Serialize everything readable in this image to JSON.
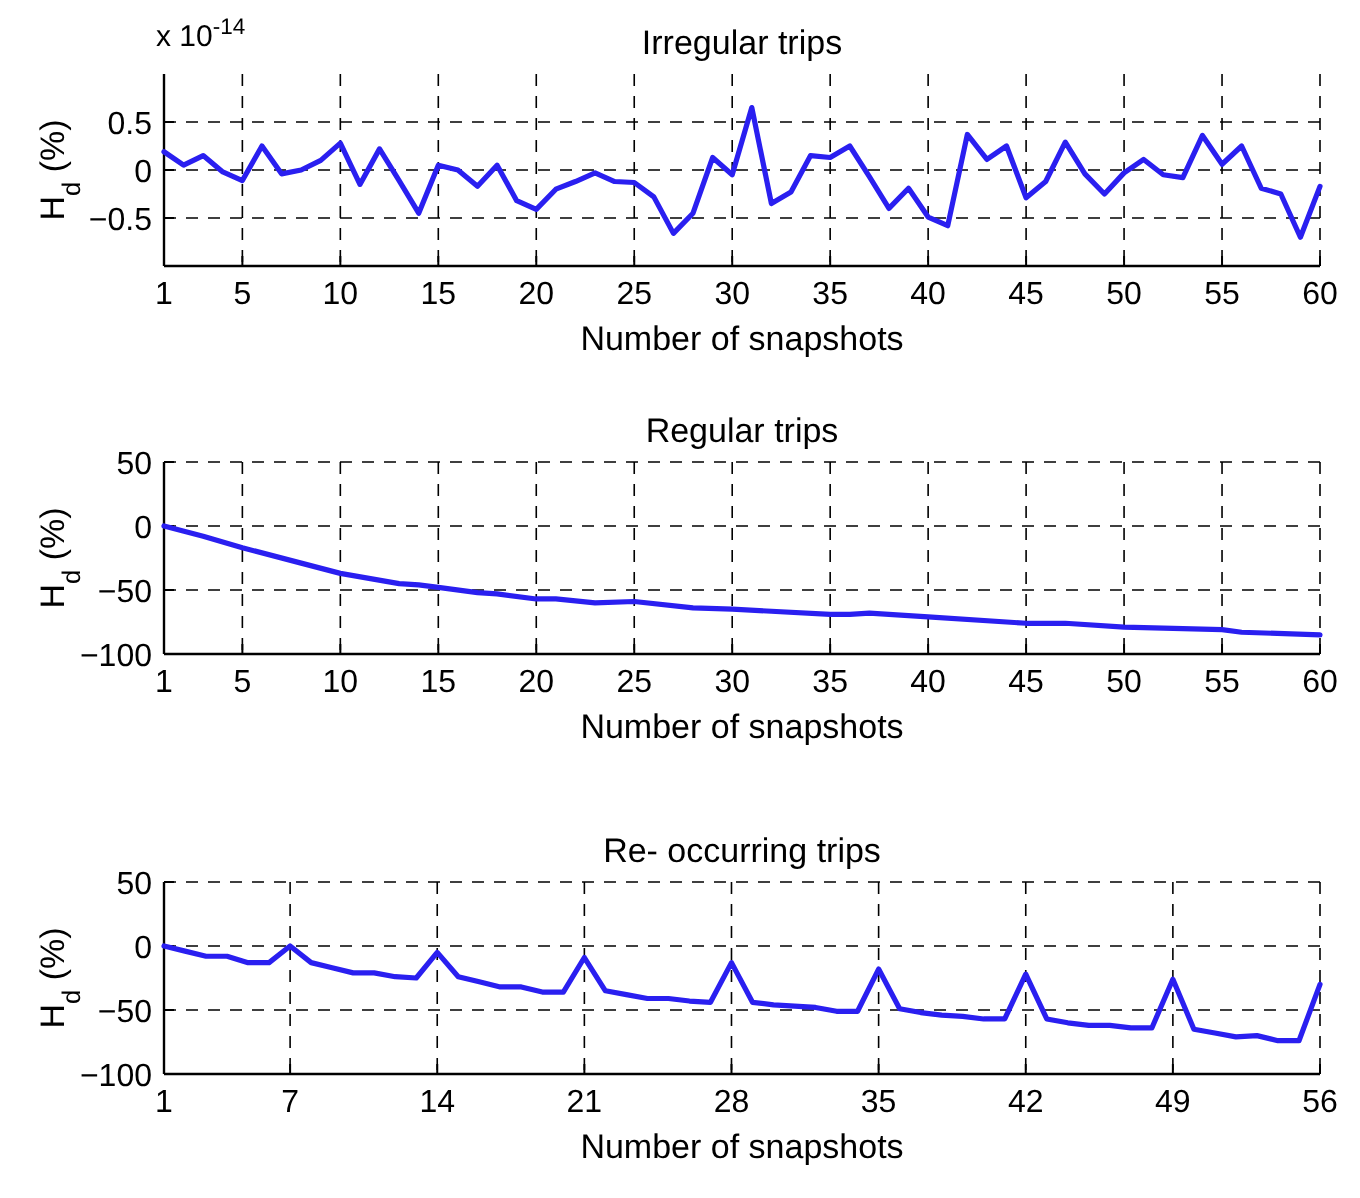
{
  "chart_data": [
    {
      "type": "line",
      "title": "Irregular trips",
      "xlabel": "Number of snapshots",
      "ylabel": "H$_{d}$ (%)",
      "annotations": [
        "x 10$^{-14}$"
      ],
      "grid": true,
      "marker": "none",
      "line_style": "solid",
      "xlim": [
        1,
        60
      ],
      "xticks": [
        1,
        5,
        10,
        15,
        20,
        25,
        30,
        35,
        40,
        45,
        50,
        55,
        60
      ],
      "ylim": [
        -1,
        1
      ],
      "yticks": [
        {
          "value": -0.5,
          "label": "−0.5"
        },
        0,
        0.5
      ],
      "x": [
        1,
        2,
        3,
        4,
        5,
        6,
        7,
        8,
        9,
        10,
        11,
        12,
        13,
        14,
        15,
        16,
        17,
        18,
        19,
        20,
        21,
        22,
        23,
        24,
        25,
        26,
        27,
        28,
        29,
        30,
        31,
        32,
        33,
        34,
        35,
        36,
        37,
        38,
        39,
        40,
        41,
        42,
        43,
        44,
        45,
        46,
        47,
        48,
        49,
        50,
        51,
        52,
        53,
        54,
        55,
        56,
        57,
        58,
        59,
        60
      ],
      "series": [
        {
          "color": "#2a1ff0",
          "values": [
            0.19,
            0.05,
            0.15,
            -0.02,
            -0.11,
            0.25,
            -0.04,
            0,
            0.1,
            0.28,
            -0.15,
            0.22,
            -0.11,
            -0.45,
            0.05,
            0,
            -0.17,
            0.05,
            -0.32,
            -0.41,
            -0.2,
            -0.12,
            -0.03,
            -0.12,
            -0.13,
            -0.28,
            -0.66,
            -0.45,
            0.13,
            -0.05,
            0.65,
            -0.35,
            -0.23,
            0.15,
            0.13,
            0.25,
            -0.07,
            -0.4,
            -0.19,
            -0.49,
            -0.58,
            0.37,
            0.11,
            0.25,
            -0.29,
            -0.12,
            0.29,
            -0.04,
            -0.25,
            -0.03,
            0.11,
            -0.05,
            -0.08,
            0.36,
            0.06,
            0.25,
            -0.19,
            -0.25,
            -0.7,
            -0.17
          ]
        }
      ]
    },
    {
      "type": "line",
      "title": "Regular trips",
      "xlabel": "Number of snapshots",
      "ylabel": "H$_{d}$ (%)",
      "grid": true,
      "marker": "none",
      "line_style": "solid",
      "xlim": [
        1,
        60
      ],
      "xticks": [
        1,
        5,
        10,
        15,
        20,
        25,
        30,
        35,
        40,
        45,
        50,
        55,
        60
      ],
      "ylim": [
        -100,
        50
      ],
      "yticks": [
        {
          "value": -100,
          "label": "−100"
        },
        {
          "value": -50,
          "label": "−50"
        },
        0,
        50
      ],
      "x": [
        1,
        3,
        5,
        8,
        10,
        13,
        14,
        15,
        17,
        18,
        20,
        21,
        23,
        25,
        28,
        30,
        35,
        36,
        37,
        40,
        45,
        47,
        50,
        55,
        56,
        60
      ],
      "series": [
        {
          "color": "#2a1ff0",
          "values": [
            0,
            -8,
            -17,
            -29,
            -37,
            -45,
            -46,
            -48,
            -52,
            -53,
            -57,
            -57,
            -60,
            -59,
            -64,
            -65,
            -69,
            -69,
            -68,
            -71,
            -76,
            -76,
            -79,
            -81,
            -83,
            -85
          ]
        }
      ]
    },
    {
      "type": "line",
      "title": "Re- occurring trips",
      "xlabel": "Number of snapshots",
      "ylabel": "H$_{d}$ (%)",
      "grid": true,
      "marker": "none",
      "line_style": "solid",
      "xlim": [
        1,
        56
      ],
      "xticks": [
        1,
        7,
        14,
        21,
        28,
        35,
        42,
        49,
        56
      ],
      "ylim": [
        -100,
        50
      ],
      "yticks": [
        {
          "value": -100,
          "label": "−100"
        },
        {
          "value": -50,
          "label": "−50"
        },
        0,
        50
      ],
      "x": [
        1,
        2,
        3,
        4,
        5,
        6,
        7,
        8,
        9,
        10,
        11,
        12,
        13,
        14,
        15,
        16,
        17,
        18,
        19,
        20,
        21,
        22,
        23,
        24,
        25,
        26,
        27,
        28,
        29,
        30,
        31,
        32,
        33,
        34,
        35,
        36,
        37,
        38,
        39,
        40,
        41,
        42,
        43,
        44,
        45,
        46,
        47,
        48,
        49,
        50,
        51,
        52,
        53,
        54,
        55,
        56
      ],
      "series": [
        {
          "color": "#2a1ff0",
          "values": [
            0,
            -4,
            -8,
            -8,
            -13,
            -13,
            0,
            -13,
            -17,
            -21,
            -21,
            -24,
            -25,
            -5,
            -24,
            -28,
            -32,
            -32,
            -36,
            -36,
            -9,
            -35,
            -38,
            -41,
            -41,
            -43,
            -44,
            -13,
            -44,
            -46,
            -47,
            -48,
            -51,
            -51,
            -18,
            -49,
            -52,
            -54,
            -55,
            -57,
            -57,
            -22,
            -57,
            -60,
            -62,
            -62,
            -64,
            -64,
            -26,
            -65,
            -68,
            -71,
            -70,
            -74,
            -74,
            -30
          ]
        }
      ]
    }
  ]
}
